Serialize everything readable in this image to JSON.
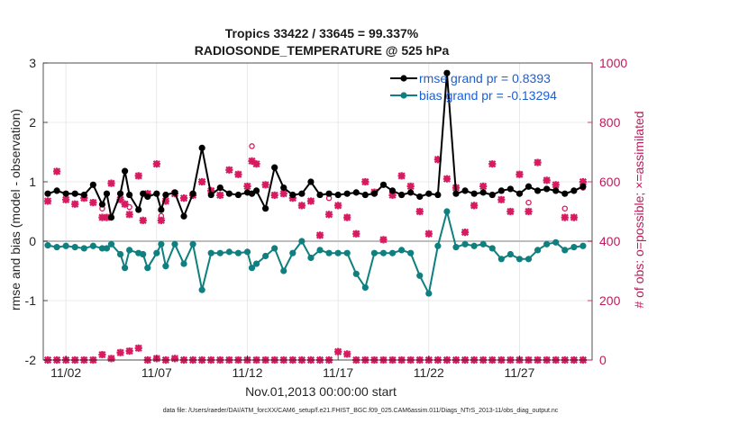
{
  "chart_data": {
    "type": "line",
    "title_line1": "Tropics 33422 / 33645 = 99.337%",
    "title_line2": "RADIOSONDE_TEMPERATURE @ 525 hPa",
    "ylabel_left": "rmse and bias (model - observation)",
    "ylabel_right": "# of obs: o=possible; ×=assimilated",
    "xlabel": "Nov.01,2013 00:00:00 start",
    "footer": "data file: /Users/raeder/DAI/ATM_forcXX/CAM6_setup/f.e21.FHIST_BGC.f09_025.CAM6assim.011/Diags_NTrS_2013-11/obs_diag_output.nc",
    "ylim_left": [
      -2,
      3
    ],
    "ylim_right": [
      0,
      1000
    ],
    "xlim": [
      0.75,
      31.0
    ],
    "yticks_left": [
      "-2",
      "-1",
      "0",
      "1",
      "2",
      "3"
    ],
    "yticks_right": [
      "0",
      "200",
      "400",
      "600",
      "800",
      "1000"
    ],
    "xticks": [
      {
        "x": 2,
        "label": "11/02"
      },
      {
        "x": 7,
        "label": "11/07"
      },
      {
        "x": 12,
        "label": "11/12"
      },
      {
        "x": 17,
        "label": "11/17"
      },
      {
        "x": 22,
        "label": "11/22"
      },
      {
        "x": 27,
        "label": "11/27"
      }
    ],
    "grid": true,
    "legend_location": "top-right",
    "colors": {
      "rmse": "#000000",
      "bias": "#0f7f7f",
      "obs": "#d81b60",
      "zero_line": "#bdbdbd"
    },
    "series": [
      {
        "name": "rmse",
        "label": "rmse grand pr = 0.8393",
        "x": [
          1,
          1.5,
          2,
          2.5,
          3,
          3.5,
          4,
          4.25,
          4.5,
          5,
          5.25,
          5.5,
          6,
          6.25,
          6.5,
          7,
          7.25,
          7.5,
          8,
          8.5,
          9,
          9.5,
          10,
          10.5,
          11,
          11.5,
          12,
          12.25,
          12.5,
          13,
          13.5,
          14,
          14.5,
          15,
          15.5,
          16,
          16.5,
          17,
          17.5,
          18,
          18.5,
          19,
          19.5,
          20,
          20.5,
          21,
          21.5,
          22,
          22.5,
          23,
          23.5,
          24,
          24.5,
          25,
          25.5,
          26,
          26.5,
          27,
          27.5,
          28,
          28.5,
          29,
          29.5,
          30,
          30.5
        ],
        "values": [
          0.8,
          0.85,
          0.8,
          0.8,
          0.78,
          0.95,
          0.62,
          0.8,
          0.4,
          0.8,
          1.18,
          0.78,
          0.53,
          0.8,
          0.75,
          0.8,
          0.53,
          0.78,
          0.82,
          0.42,
          0.8,
          1.57,
          0.78,
          0.9,
          0.8,
          0.78,
          0.82,
          0.8,
          0.85,
          0.55,
          1.24,
          0.9,
          0.78,
          0.8,
          1.0,
          0.78,
          0.8,
          0.78,
          0.8,
          0.82,
          0.78,
          0.8,
          0.95,
          0.85,
          0.78,
          0.82,
          0.75,
          0.8,
          0.78,
          2.83,
          0.8,
          0.85,
          0.8,
          0.82,
          0.78,
          0.85,
          0.88,
          0.8,
          0.92,
          0.85,
          0.88,
          0.85,
          0.8,
          0.85,
          0.92
        ]
      },
      {
        "name": "bias",
        "label": "bias grand pr = -0.13294",
        "x": [
          1,
          1.5,
          2,
          2.5,
          3,
          3.5,
          4,
          4.25,
          4.5,
          5,
          5.25,
          5.5,
          6,
          6.25,
          6.5,
          7,
          7.25,
          7.5,
          8,
          8.5,
          9,
          9.5,
          10,
          10.5,
          11,
          11.5,
          12,
          12.25,
          12.5,
          13,
          13.5,
          14,
          14.5,
          15,
          15.5,
          16,
          16.5,
          17,
          17.5,
          18,
          18.5,
          19,
          19.5,
          20,
          20.5,
          21,
          21.5,
          22,
          22.5,
          23,
          23.5,
          24,
          24.5,
          25,
          25.5,
          26,
          26.5,
          27,
          27.5,
          28,
          28.5,
          29,
          29.5,
          30,
          30.5
        ],
        "values": [
          -0.07,
          -0.1,
          -0.08,
          -0.1,
          -0.12,
          -0.08,
          -0.12,
          -0.12,
          -0.05,
          -0.22,
          -0.45,
          -0.15,
          -0.2,
          -0.22,
          -0.45,
          -0.2,
          -0.05,
          -0.42,
          -0.05,
          -0.38,
          -0.05,
          -0.82,
          -0.2,
          -0.2,
          -0.18,
          -0.2,
          -0.18,
          -0.45,
          -0.38,
          -0.25,
          -0.12,
          -0.5,
          -0.2,
          0.0,
          -0.28,
          -0.15,
          -0.2,
          -0.2,
          -0.2,
          -0.55,
          -0.78,
          -0.2,
          -0.2,
          -0.2,
          -0.15,
          -0.2,
          -0.58,
          -0.88,
          -0.08,
          0.5,
          -0.1,
          -0.05,
          -0.08,
          -0.05,
          -0.12,
          -0.3,
          -0.22,
          -0.3,
          -0.3,
          -0.15,
          -0.05,
          -0.02,
          -0.15,
          -0.1,
          -0.08
        ]
      },
      {
        "name": "obs_possible",
        "x": [
          1,
          1.5,
          2,
          2.5,
          3,
          3.5,
          4,
          4.25,
          4.5,
          5,
          5.25,
          5.5,
          6,
          6.25,
          6.5,
          7,
          7.25,
          7.5,
          8,
          8.5,
          9,
          9.5,
          10,
          10.5,
          11,
          11.5,
          12,
          12.25,
          12.5,
          13,
          13.5,
          14,
          14.5,
          15,
          15.5,
          16,
          16.5,
          17,
          17.5,
          18,
          18.5,
          19,
          19.5,
          20,
          20.5,
          21,
          21.5,
          22,
          22.5,
          23,
          23.5,
          24,
          24.5,
          25,
          25.5,
          26,
          26.5,
          27,
          27.5,
          28,
          28.5,
          29,
          29.5,
          30,
          30.5
        ],
        "values": [
          535,
          635,
          540,
          525,
          545,
          530,
          510,
          480,
          595,
          540,
          525,
          515,
          620,
          470,
          560,
          660,
          485,
          535,
          560,
          545,
          555,
          600,
          570,
          555,
          640,
          625,
          585,
          720,
          660,
          590,
          555,
          560,
          545,
          520,
          535,
          420,
          545,
          520,
          480,
          425,
          600,
          565,
          405,
          555,
          620,
          585,
          500,
          425,
          675,
          610,
          580,
          430,
          520,
          585,
          660,
          540,
          500,
          625,
          530,
          665,
          605,
          590,
          510,
          480,
          580
        ]
      },
      {
        "name": "obs_assimilated",
        "x": [
          1,
          1.5,
          2,
          2.5,
          3,
          3.5,
          4,
          4.25,
          4.5,
          5,
          5.25,
          5.5,
          6,
          6.25,
          6.5,
          7,
          7.25,
          7.5,
          8,
          8.5,
          9,
          9.5,
          10,
          10.5,
          11,
          11.5,
          12,
          12.25,
          12.5,
          13,
          13.5,
          14,
          14.5,
          15,
          15.5,
          16,
          16.5,
          17,
          17.5,
          18,
          18.5,
          19,
          19.5,
          20,
          20.5,
          21,
          21.5,
          22,
          22.5,
          23,
          23.5,
          24,
          24.5,
          25,
          25.5,
          26,
          26.5,
          27,
          27.5,
          28,
          28.5,
          29,
          29.5,
          30,
          30.5
        ],
        "values": [
          535,
          635,
          540,
          525,
          545,
          530,
          480,
          480,
          595,
          540,
          525,
          490,
          620,
          470,
          560,
          660,
          470,
          535,
          560,
          545,
          555,
          600,
          570,
          555,
          640,
          625,
          585,
          670,
          660,
          590,
          555,
          560,
          545,
          520,
          535,
          420,
          490,
          520,
          480,
          425,
          600,
          565,
          405,
          555,
          620,
          585,
          500,
          425,
          675,
          610,
          580,
          430,
          520,
          585,
          660,
          540,
          500,
          625,
          500,
          665,
          605,
          590,
          480,
          480,
          600
        ]
      },
      {
        "name": "obs_near_zero",
        "x": [
          1,
          1.5,
          2,
          2.5,
          3,
          3.5,
          4,
          4.5,
          5,
          5.5,
          6,
          6.5,
          7,
          7.5,
          8,
          8.5,
          9,
          9.5,
          10,
          10.5,
          11,
          11.5,
          12,
          12.5,
          13,
          13.5,
          14,
          14.5,
          15,
          15.5,
          16,
          16.5,
          17,
          17.5,
          18,
          18.5,
          19,
          19.5,
          20,
          20.5,
          21,
          21.5,
          22,
          22.5,
          23,
          23.5,
          24,
          24.5,
          25,
          25.5,
          26,
          26.5,
          27,
          27.5,
          28,
          28.5,
          29,
          29.5,
          30,
          30.5
        ],
        "values": [
          0,
          0,
          0,
          0,
          0,
          0,
          18,
          5,
          25,
          30,
          40,
          0,
          5,
          0,
          5,
          0,
          0,
          0,
          0,
          0,
          0,
          0,
          0,
          0,
          0,
          0,
          0,
          0,
          0,
          0,
          0,
          0,
          28,
          20,
          0,
          0,
          0,
          0,
          0,
          0,
          0,
          0,
          0,
          0,
          0,
          0,
          0,
          0,
          0,
          0,
          0,
          0,
          0,
          0,
          0,
          0,
          0,
          0,
          0,
          0
        ]
      }
    ]
  }
}
